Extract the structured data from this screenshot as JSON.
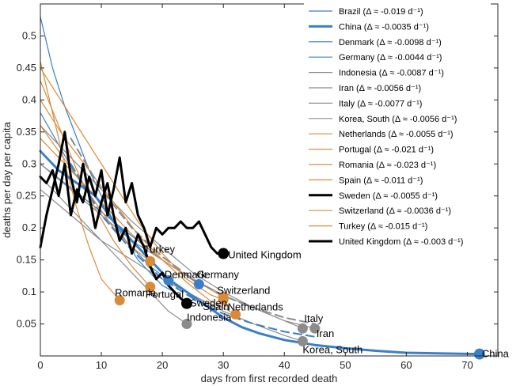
{
  "chart_data": {
    "type": "line",
    "title": "",
    "xlabel": "days from first recorded death",
    "ylabel": "deaths per day per capita",
    "xlim": [
      0,
      75
    ],
    "ylim": [
      0,
      0.55
    ],
    "xticks": [
      0,
      10,
      20,
      30,
      40,
      50,
      60,
      70
    ],
    "yticks": [
      0.05,
      0.1,
      0.15,
      0.2,
      0.25,
      0.3,
      0.35,
      0.4,
      0.45,
      0.5
    ],
    "grid": false,
    "legend_position": "top-right",
    "colors": {
      "blue": "#3a7fc7",
      "gray": "#8c8c8c",
      "orange": "#d98b3a",
      "black": "#000000"
    },
    "series": [
      {
        "name": "Brazil",
        "legend": "Brazil (Δ ≈ -0.019 d⁻¹)",
        "color": "#3a7fc7",
        "width": 1.2,
        "x": [
          0,
          2,
          4,
          6,
          8,
          10,
          12,
          14,
          16,
          18,
          20,
          22
        ],
        "y": [
          0.53,
          0.45,
          0.39,
          0.34,
          0.29,
          0.25,
          0.21,
          0.18,
          0.15,
          0.13,
          0.11,
          0.1
        ]
      },
      {
        "name": "China",
        "legend": "China (Δ ≈ -0.0035 d⁻¹)",
        "color": "#3a7fc7",
        "width": 3,
        "x": [
          0,
          3,
          6,
          9,
          12,
          15,
          18,
          21,
          24,
          27,
          30,
          33,
          36,
          40,
          45,
          50,
          55,
          60,
          65,
          72
        ],
        "y": [
          0.32,
          0.29,
          0.27,
          0.25,
          0.21,
          0.18,
          0.15,
          0.12,
          0.1,
          0.08,
          0.06,
          0.045,
          0.035,
          0.025,
          0.017,
          0.012,
          0.008,
          0.005,
          0.004,
          0.003
        ],
        "end_label": "China",
        "end_x": 72,
        "end_y": 0.003
      },
      {
        "name": "Denmark",
        "legend": "Denmark (Δ ≈ -0.0098 d⁻¹)",
        "color": "#3a7fc7",
        "width": 1.2,
        "x": [
          0,
          3,
          6,
          9,
          12,
          15,
          18,
          21
        ],
        "y": [
          0.38,
          0.33,
          0.28,
          0.24,
          0.2,
          0.17,
          0.14,
          0.118
        ],
        "end_label": "Denmark",
        "end_x": 21,
        "end_y": 0.118
      },
      {
        "name": "Germany",
        "legend": "Germany (Δ ≈ -0.0044 d⁻¹)",
        "color": "#3a7fc7",
        "width": 1.2,
        "x": [
          0,
          4,
          8,
          12,
          16,
          20,
          24,
          26
        ],
        "y": [
          0.3,
          0.27,
          0.24,
          0.21,
          0.18,
          0.15,
          0.125,
          0.112
        ],
        "end_label": "Germany",
        "end_x": 26,
        "end_y": 0.112
      },
      {
        "name": "Indonesia",
        "legend": "Indonesia (Δ ≈ -0.0087 d⁻¹)",
        "color": "#8c8c8c",
        "width": 1.2,
        "x": [
          0,
          3,
          6,
          9,
          12,
          15,
          18,
          21,
          24
        ],
        "y": [
          0.28,
          0.25,
          0.22,
          0.19,
          0.16,
          0.13,
          0.1,
          0.07,
          0.05
        ],
        "end_label": "Indonesia",
        "end_x": 24,
        "end_y": 0.05
      },
      {
        "name": "Iran",
        "legend": "Iran (Δ ≈ -0.0056 d⁻¹)",
        "color": "#8c8c8c",
        "width": 1.2,
        "x": [
          0,
          5,
          10,
          15,
          20,
          25,
          30,
          35,
          40,
          45
        ],
        "y": [
          0.3,
          0.26,
          0.22,
          0.18,
          0.15,
          0.12,
          0.095,
          0.075,
          0.055,
          0.043
        ],
        "end_label": "Iran",
        "end_x": 45,
        "end_y": 0.043
      },
      {
        "name": "Italy",
        "legend": "Italy (Δ ≈ -0.0077 d⁻¹)",
        "color": "#8c8c8c",
        "width": 1.2,
        "x": [
          0,
          5,
          10,
          15,
          20,
          25,
          30,
          35,
          40,
          43
        ],
        "y": [
          0.36,
          0.31,
          0.26,
          0.21,
          0.17,
          0.13,
          0.1,
          0.075,
          0.055,
          0.043
        ],
        "end_label": "Italy",
        "end_x": 43,
        "end_y": 0.043
      },
      {
        "name": "Korea, South",
        "legend": "Korea, South (Δ ≈ -0.0056 d⁻¹)",
        "color": "#8c8c8c",
        "width": 1.2,
        "x": [
          0,
          5,
          10,
          15,
          20,
          25,
          30,
          35,
          40,
          43
        ],
        "y": [
          0.26,
          0.22,
          0.18,
          0.15,
          0.12,
          0.095,
          0.07,
          0.05,
          0.032,
          0.023
        ],
        "end_label": "Korea, South",
        "end_x": 43,
        "end_y": 0.023
      },
      {
        "name": "Netherlands",
        "legend": "Netherlands (Δ ≈ -0.0055 d⁻¹)",
        "color": "#d98b3a",
        "width": 1.2,
        "x": [
          0,
          4,
          8,
          12,
          16,
          20,
          24,
          28,
          32
        ],
        "y": [
          0.4,
          0.34,
          0.29,
          0.24,
          0.19,
          0.15,
          0.115,
          0.085,
          0.065
        ],
        "end_label": "Netherlands",
        "end_x": 32,
        "end_y": 0.065
      },
      {
        "name": "Portugal",
        "legend": "Portugal (Δ ≈ -0.021 d⁻¹)",
        "color": "#d98b3a",
        "width": 1.2,
        "x": [
          0,
          3,
          6,
          9,
          12,
          15,
          18
        ],
        "y": [
          0.43,
          0.36,
          0.29,
          0.23,
          0.18,
          0.14,
          0.108
        ],
        "end_label": "Portugal",
        "end_x": 18,
        "end_y": 0.108
      },
      {
        "name": "Romania",
        "legend": "Romania (Δ ≈ -0.023 d⁻¹)",
        "color": "#d98b3a",
        "width": 1.2,
        "x": [
          0,
          2,
          4,
          6,
          8,
          10,
          13
        ],
        "y": [
          0.46,
          0.38,
          0.3,
          0.23,
          0.17,
          0.12,
          0.087
        ],
        "end_label": "Romania",
        "end_x": 13,
        "end_y": 0.087
      },
      {
        "name": "Spain",
        "legend": "Spain (Δ ≈ -0.011 d⁻¹)",
        "color": "#d98b3a",
        "width": 1.2,
        "x": [
          0,
          4,
          8,
          12,
          16,
          20,
          24,
          28,
          30
        ],
        "y": [
          0.45,
          0.39,
          0.33,
          0.27,
          0.21,
          0.16,
          0.12,
          0.095,
          0.088
        ],
        "end_label": "Spain",
        "end_x": 30,
        "end_y": 0.088
      },
      {
        "name": "Sweden",
        "legend": "Sweden (Δ ≈ -0.0055 d⁻¹)",
        "color": "#000000",
        "width": 3,
        "x": [
          0,
          1,
          2,
          3,
          4,
          5,
          6,
          7,
          8,
          9,
          10,
          11,
          12,
          13,
          14,
          15,
          16,
          17,
          18,
          19,
          20,
          21,
          22,
          23,
          24
        ],
        "y": [
          0.17,
          0.22,
          0.26,
          0.3,
          0.35,
          0.28,
          0.24,
          0.3,
          0.25,
          0.2,
          0.24,
          0.27,
          0.22,
          0.18,
          0.2,
          0.16,
          0.19,
          0.17,
          0.14,
          0.12,
          0.13,
          0.11,
          0.1,
          0.09,
          0.082
        ],
        "end_label": "Sweden",
        "end_x": 24,
        "end_y": 0.082
      },
      {
        "name": "Switzerland",
        "legend": "Switzerland (Δ ≈ -0.0036 d⁻¹)",
        "color": "#d98b3a",
        "width": 1.2,
        "x": [
          0,
          5,
          10,
          15,
          20,
          25,
          30
        ],
        "y": [
          0.34,
          0.29,
          0.24,
          0.19,
          0.15,
          0.12,
          0.092
        ],
        "end_label": "Switzerland",
        "end_x": 30,
        "end_y": 0.092
      },
      {
        "name": "Turkey",
        "legend": "Turkey (Δ ≈ -0.015 d⁻¹)",
        "color": "#d98b3a",
        "width": 1.2,
        "x": [
          0,
          3,
          6,
          9,
          12,
          15,
          18
        ],
        "y": [
          0.36,
          0.32,
          0.28,
          0.24,
          0.2,
          0.17,
          0.148
        ],
        "end_label": "Turkey",
        "end_x": 18,
        "end_y": 0.148
      },
      {
        "name": "United Kingdom",
        "legend": "United Kingdom (Δ ≈ -0.003 d⁻¹)",
        "color": "#000000",
        "width": 3,
        "x": [
          0,
          1,
          2,
          3,
          4,
          5,
          6,
          7,
          8,
          9,
          10,
          11,
          12,
          13,
          14,
          15,
          16,
          17,
          18,
          19,
          20,
          21,
          22,
          23,
          24,
          25,
          26,
          27,
          28,
          29,
          30
        ],
        "y": [
          0.28,
          0.27,
          0.29,
          0.25,
          0.3,
          0.22,
          0.26,
          0.24,
          0.28,
          0.25,
          0.29,
          0.22,
          0.26,
          0.31,
          0.24,
          0.27,
          0.22,
          0.2,
          0.17,
          0.2,
          0.19,
          0.2,
          0.2,
          0.21,
          0.2,
          0.2,
          0.21,
          0.19,
          0.17,
          0.16,
          0.16
        ],
        "end_label": "United Kingdom",
        "end_x": 30,
        "end_y": 0.16
      },
      {
        "name": "",
        "color": "#8c8c8c",
        "width": 2,
        "dashed": true,
        "x": [
          5,
          10,
          15,
          20,
          25,
          30,
          35,
          40,
          45
        ],
        "y": [
          0.34,
          0.26,
          0.2,
          0.155,
          0.12,
          0.094,
          0.075,
          0.06,
          0.05
        ]
      },
      {
        "name": "",
        "color": "#3a7fc7",
        "width": 2,
        "dashed": true,
        "x": [
          5,
          10,
          15,
          20,
          25,
          30,
          35,
          40,
          45
        ],
        "y": [
          0.3,
          0.22,
          0.165,
          0.12,
          0.09,
          0.066,
          0.05,
          0.038,
          0.03
        ]
      }
    ]
  }
}
